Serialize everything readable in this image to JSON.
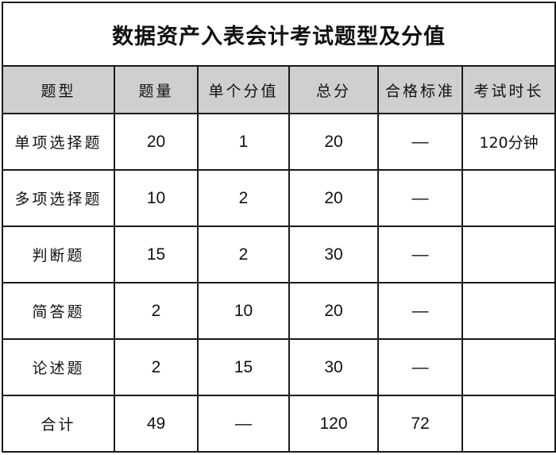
{
  "title": "数据资产入表会计考试题型及分值",
  "headers": [
    "题型",
    "题量",
    "单个分值",
    "总分",
    "合格标准",
    "考试时长"
  ],
  "rows": [
    [
      "单项选择题",
      "20",
      "1",
      "20",
      "—",
      "120分钟"
    ],
    [
      "多项选择题",
      "10",
      "2",
      "20",
      "—",
      ""
    ],
    [
      "判断题",
      "15",
      "2",
      "30",
      "—",
      ""
    ],
    [
      "简答题",
      "2",
      "10",
      "20",
      "—",
      ""
    ],
    [
      "论述题",
      "2",
      "15",
      "30",
      "—",
      ""
    ],
    [
      "合计",
      "49",
      "—",
      "120",
      "72",
      ""
    ]
  ]
}
